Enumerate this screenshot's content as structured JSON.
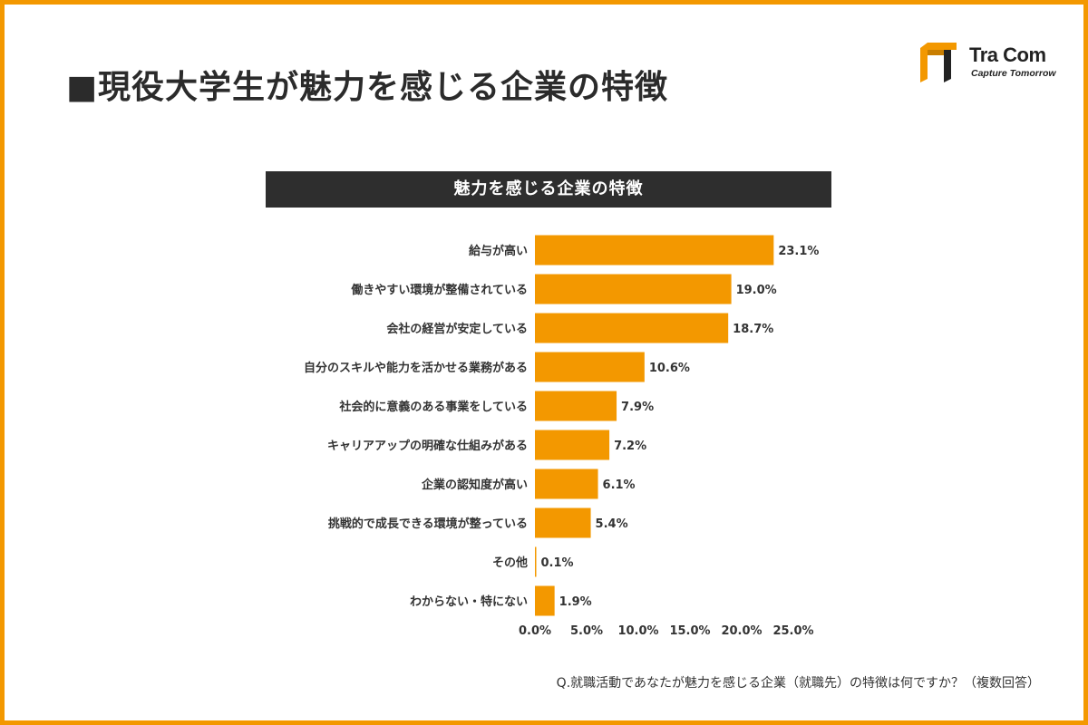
{
  "header": {
    "title": "■現役大学生が魅力を感じる企業の特徴"
  },
  "logo": {
    "name": "Tra Com",
    "tagline": "Capture Tomorrow",
    "colors": {
      "mark_primary": "#f39800",
      "mark_shadow": "#c97e00",
      "mark_dark": "#222222"
    }
  },
  "chart_header": "魅力を感じる企業の特徴",
  "footnote": "Q.就職活動であなたが魅力を感じる企業（就職先）の特徴は何ですか？（複数回答）",
  "colors": {
    "border": "#f39800",
    "bar": "#f39800",
    "header_bg": "#2e2e2e"
  },
  "chart_data": {
    "type": "bar",
    "orientation": "horizontal",
    "title": "魅力を感じる企業の特徴",
    "categories": [
      "給与が高い",
      "働きやすい環境が整備されている",
      "会社の経営が安定している",
      "自分のスキルや能力を活かせる業務がある",
      "社会的に意義のある事業をしている",
      "キャリアアップの明確な仕組みがある",
      "企業の認知度が高い",
      "挑戦的で成長できる環境が整っている",
      "その他",
      "わからない・特にない"
    ],
    "values": [
      23.1,
      19.0,
      18.7,
      10.6,
      7.9,
      7.2,
      6.1,
      5.4,
      0.1,
      1.9
    ],
    "value_labels": [
      "23.1%",
      "19.0%",
      "18.7%",
      "10.6%",
      "7.9%",
      "7.2%",
      "6.1%",
      "5.4%",
      "0.1%",
      "1.9%"
    ],
    "xlim": [
      0,
      25
    ],
    "x_ticks": [
      "0.0%",
      "5.0%",
      "10.0%",
      "15.0%",
      "20.0%",
      "25.0%"
    ],
    "grid": false,
    "legend": "none"
  }
}
